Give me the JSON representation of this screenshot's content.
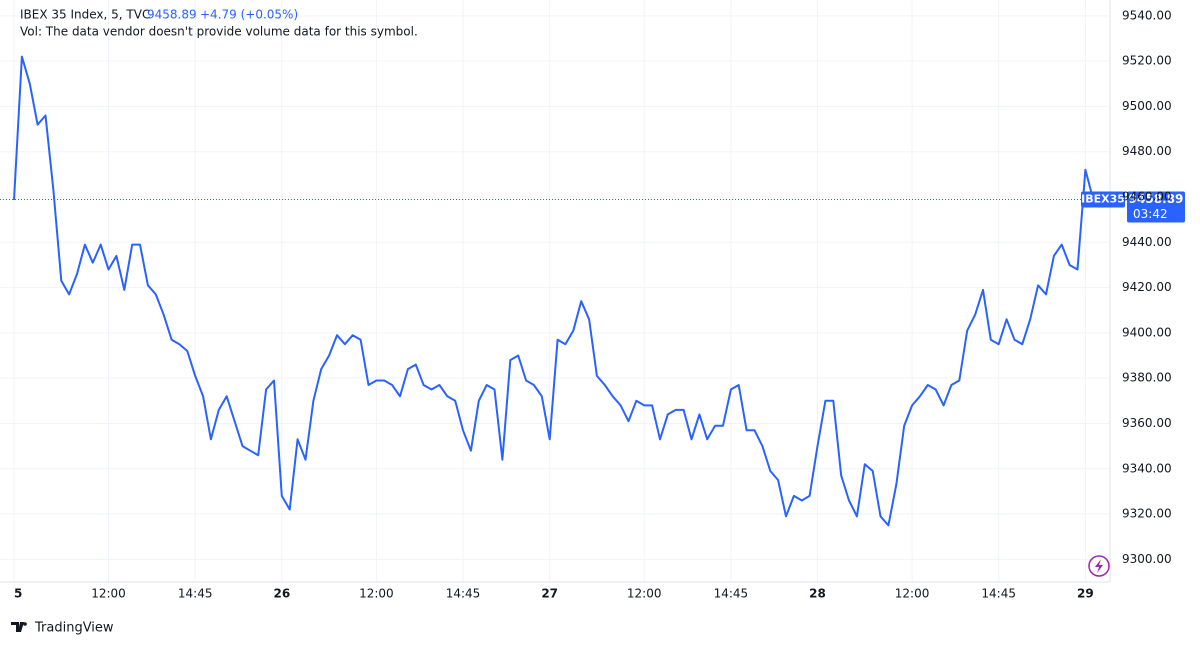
{
  "chart_data": {
    "type": "line",
    "title": "IBEX 35 Index, 5, TVC",
    "legend_price": "9458.89",
    "change": "+4.79 (+0.05%)",
    "note": "Vol: The data vendor doesn't provide volume data for this symbol.",
    "symbol": "IBEX35",
    "price_label": "9458.89",
    "countdown": "03:42",
    "watermark": "TradingView",
    "series": [
      {
        "name": "IBEX35",
        "color": "#2962ff",
        "values": [
          9458.7,
          9522,
          9510,
          9492,
          9496,
          9463,
          9423,
          9417,
          9426,
          9439,
          9431,
          9439,
          9428,
          9434,
          9419,
          9439,
          9439,
          9421,
          9417,
          9408,
          9397,
          9395,
          9392,
          9381,
          9372,
          9353,
          9366,
          9372,
          9361,
          9350,
          9348,
          9346,
          9375,
          9379,
          9328,
          9322,
          9353,
          9344,
          9370,
          9384,
          9390,
          9399,
          9395,
          9399,
          9397,
          9377,
          9379,
          9379,
          9377,
          9372,
          9384,
          9386,
          9377,
          9375,
          9377,
          9372,
          9370,
          9357,
          9348,
          9370,
          9377,
          9375,
          9344,
          9388,
          9390,
          9379,
          9377,
          9372,
          9353,
          9397,
          9395,
          9401,
          9414,
          9406,
          9381,
          9377,
          9372,
          9368,
          9361,
          9370,
          9368,
          9368,
          9353,
          9364,
          9366,
          9366,
          9353,
          9364,
          9353,
          9359,
          9359,
          9375,
          9377,
          9357,
          9357,
          9350,
          9339,
          9335,
          9319,
          9328,
          9326,
          9328,
          9350,
          9370,
          9370,
          9337,
          9326,
          9319,
          9342,
          9339,
          9319,
          9315,
          9333,
          9359,
          9368,
          9372,
          9377,
          9375,
          9368,
          9377,
          9379,
          9401,
          9408,
          9419,
          9397,
          9395,
          9406,
          9397,
          9395,
          9406,
          9421,
          9417,
          9434,
          9439,
          9430,
          9428,
          9472,
          9458.89
        ]
      }
    ],
    "xlim": [
      0,
      139
    ],
    "xticks": [
      {
        "value": 0,
        "label": "5"
      },
      {
        "value": 12,
        "label": "12:00"
      },
      {
        "value": 23,
        "label": "14:45"
      },
      {
        "value": 34,
        "label": "26"
      },
      {
        "value": 46,
        "label": "12:00"
      },
      {
        "value": 57,
        "label": "14:45"
      },
      {
        "value": 68,
        "label": "27"
      },
      {
        "value": 80,
        "label": "12:00"
      },
      {
        "value": 91,
        "label": "14:45"
      },
      {
        "value": 102,
        "label": "28"
      },
      {
        "value": 114,
        "label": "12:00"
      },
      {
        "value": 125,
        "label": "14:45"
      },
      {
        "value": 136,
        "label": "29"
      }
    ],
    "ylim": [
      9290,
      9547
    ],
    "yticks": [
      {
        "value": 9300,
        "label": "9300.00"
      },
      {
        "value": 9320,
        "label": "9320.00"
      },
      {
        "value": 9340,
        "label": "9340.00"
      },
      {
        "value": 9360,
        "label": "9360.00"
      },
      {
        "value": 9380,
        "label": "9380.00"
      },
      {
        "value": 9400,
        "label": "9400.00"
      },
      {
        "value": 9420,
        "label": "9420.00"
      },
      {
        "value": 9440,
        "label": "9440.00"
      },
      {
        "value": 9460,
        "label": "9460.00"
      },
      {
        "value": 9480,
        "label": "9480.00"
      },
      {
        "value": 9500,
        "label": "9500.00"
      },
      {
        "value": 9520,
        "label": "9520.00"
      },
      {
        "value": 9540,
        "label": "9540.00"
      }
    ],
    "grid": true
  }
}
